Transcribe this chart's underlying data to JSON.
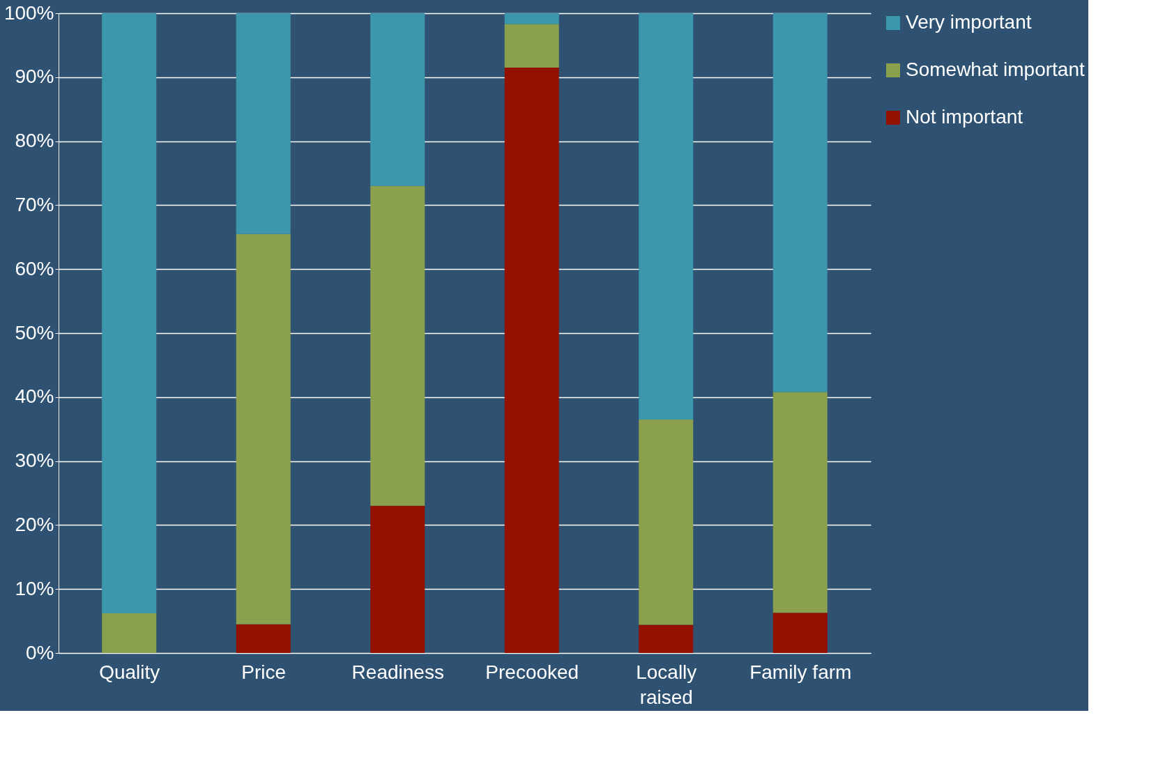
{
  "chart_data": {
    "type": "bar",
    "stacked": true,
    "categories": [
      "Quality",
      "Price",
      "Readiness",
      "Precooked",
      "Locally raised",
      "Family farm"
    ],
    "series": [
      {
        "name": "Not important",
        "color": "#931100",
        "values": [
          0,
          4.5,
          23,
          91.5,
          4.4,
          6.3
        ]
      },
      {
        "name": "Somewhat important",
        "color": "#8aa04c",
        "values": [
          6.2,
          61,
          50,
          6.8,
          32.1,
          34.5
        ]
      },
      {
        "name": "Very important",
        "color": "#3c97ad",
        "values": [
          93.8,
          34.5,
          27,
          1.7,
          63.5,
          59.2
        ]
      }
    ],
    "ylim": [
      0,
      100
    ],
    "yticks": [
      {
        "value": 0,
        "label": "0%"
      },
      {
        "value": 10,
        "label": "10%"
      },
      {
        "value": 20,
        "label": "20%"
      },
      {
        "value": 30,
        "label": "30%"
      },
      {
        "value": 40,
        "label": "40%"
      },
      {
        "value": 50,
        "label": "50%"
      },
      {
        "value": 60,
        "label": "60%"
      },
      {
        "value": 70,
        "label": "70%"
      },
      {
        "value": 80,
        "label": "80%"
      },
      {
        "value": 90,
        "label": "90%"
      },
      {
        "value": 100,
        "label": "100%"
      }
    ],
    "grid": "y",
    "legend": "right"
  }
}
